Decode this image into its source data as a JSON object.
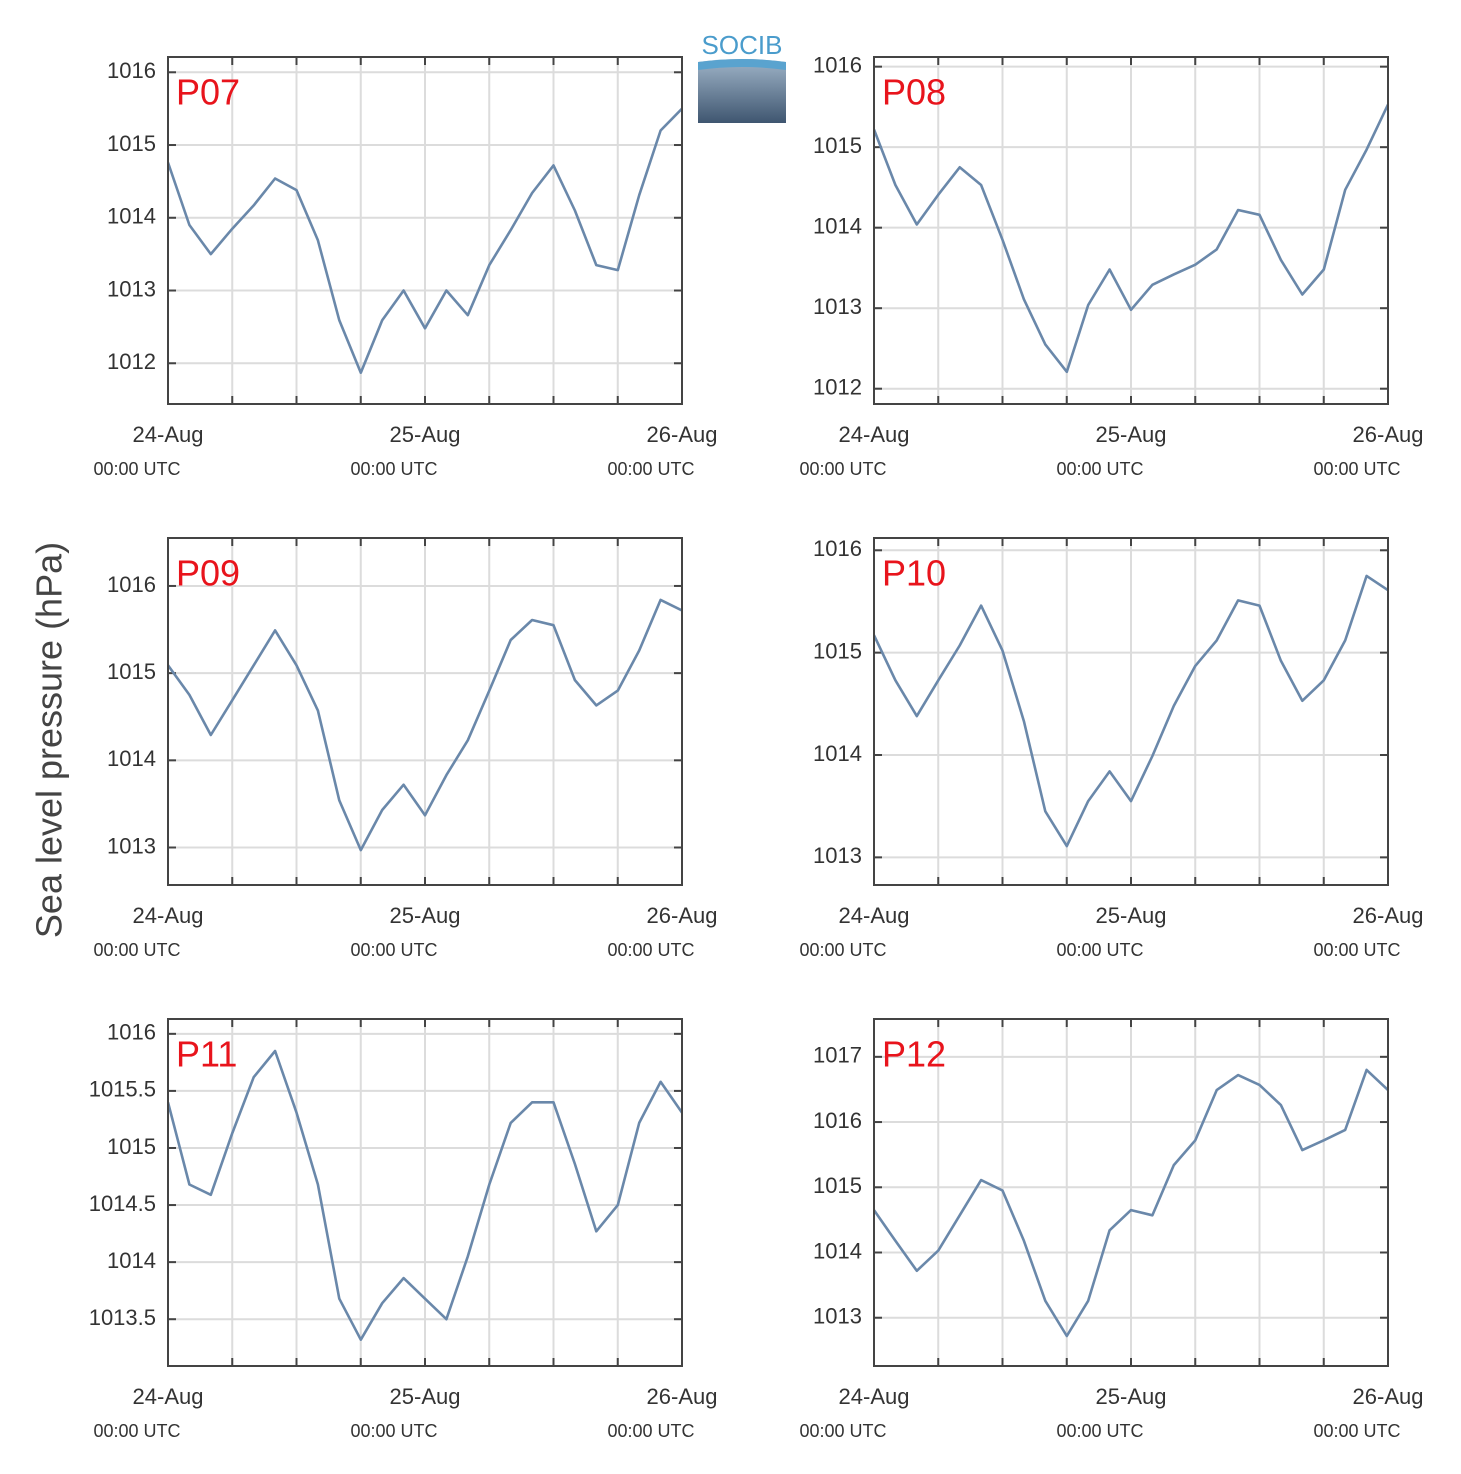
{
  "ylabel": "Sea level pressure (hPa)",
  "logo": "SOCIB",
  "chart_data": [
    {
      "type": "line",
      "title": "P07",
      "color": "#6a88aa",
      "x": [
        "24-Aug 00:00",
        "24-Aug 02:00",
        "24-Aug 04:00",
        "24-Aug 06:00",
        "24-Aug 08:00",
        "24-Aug 10:00",
        "24-Aug 12:00",
        "24-Aug 14:00",
        "24-Aug 16:00",
        "24-Aug 18:00",
        "24-Aug 20:00",
        "24-Aug 22:00",
        "25-Aug 00:00",
        "25-Aug 02:00",
        "25-Aug 04:00",
        "25-Aug 06:00",
        "25-Aug 08:00",
        "25-Aug 10:00",
        "25-Aug 12:00",
        "25-Aug 14:00",
        "25-Aug 16:00",
        "25-Aug 18:00",
        "25-Aug 20:00",
        "25-Aug 22:00",
        "26-Aug 00:00"
      ],
      "values": [
        1014.76,
        1013.9,
        1013.5,
        1013.85,
        1014.17,
        1014.54,
        1014.38,
        1013.69,
        1012.59,
        1011.87,
        1012.59,
        1013.0,
        1012.48,
        1013.0,
        1012.66,
        1013.35,
        1013.83,
        1014.34,
        1014.72,
        1014.1,
        1013.35,
        1013.28,
        1014.31,
        1015.2,
        1015.5
      ],
      "xlim": [
        "24-Aug 00:00",
        "26-Aug 00:00"
      ],
      "xticks": [
        {
          "value": "24-Aug 00:00",
          "label": "24-Aug",
          "sublabel": "00:00 UTC"
        },
        {
          "value": "24-Aug 06:00",
          "label": null
        },
        {
          "value": "24-Aug 12:00",
          "label": null
        },
        {
          "value": "24-Aug 18:00",
          "label": null
        },
        {
          "value": "25-Aug 00:00",
          "label": "25-Aug",
          "sublabel": "00:00 UTC"
        },
        {
          "value": "25-Aug 06:00",
          "label": null
        },
        {
          "value": "25-Aug 12:00",
          "label": null
        },
        {
          "value": "25-Aug 18:00",
          "label": null
        },
        {
          "value": "26-Aug 00:00",
          "label": "26-Aug",
          "sublabel": "00:00 UTC"
        }
      ],
      "ylim": [
        1011.44,
        1016.21
      ],
      "yticks": [
        1012,
        1013,
        1014,
        1015,
        1016
      ],
      "grid": true
    },
    {
      "type": "line",
      "title": "P08",
      "color": "#6a88aa",
      "x": [
        "24-Aug 00:00",
        "24-Aug 02:00",
        "24-Aug 04:00",
        "24-Aug 06:00",
        "24-Aug 08:00",
        "24-Aug 10:00",
        "24-Aug 12:00",
        "24-Aug 14:00",
        "24-Aug 16:00",
        "24-Aug 18:00",
        "24-Aug 20:00",
        "24-Aug 22:00",
        "25-Aug 00:00",
        "25-Aug 02:00",
        "25-Aug 04:00",
        "25-Aug 06:00",
        "25-Aug 08:00",
        "25-Aug 10:00",
        "25-Aug 12:00",
        "25-Aug 14:00",
        "25-Aug 16:00",
        "25-Aug 18:00",
        "25-Aug 20:00",
        "25-Aug 22:00",
        "26-Aug 00:00"
      ],
      "values": [
        1015.22,
        1014.53,
        1014.04,
        1014.41,
        1014.75,
        1014.53,
        1013.85,
        1013.11,
        1012.55,
        1012.21,
        1013.04,
        1013.48,
        1012.98,
        1013.29,
        1013.42,
        1013.54,
        1013.73,
        1014.22,
        1014.16,
        1013.6,
        1013.17,
        1013.48,
        1014.47,
        1014.97,
        1015.53
      ],
      "xlim": [
        "24-Aug 00:00",
        "26-Aug 00:00"
      ],
      "xticks": [
        {
          "value": "24-Aug 00:00",
          "label": "24-Aug",
          "sublabel": "00:00 UTC"
        },
        {
          "value": "24-Aug 06:00",
          "label": null
        },
        {
          "value": "24-Aug 12:00",
          "label": null
        },
        {
          "value": "24-Aug 18:00",
          "label": null
        },
        {
          "value": "25-Aug 00:00",
          "label": "25-Aug",
          "sublabel": "00:00 UTC"
        },
        {
          "value": "25-Aug 06:00",
          "label": null
        },
        {
          "value": "25-Aug 12:00",
          "label": null
        },
        {
          "value": "25-Aug 18:00",
          "label": null
        },
        {
          "value": "26-Aug 00:00",
          "label": "26-Aug",
          "sublabel": "00:00 UTC"
        }
      ],
      "ylim": [
        1011.81,
        1016.12
      ],
      "yticks": [
        1012,
        1013,
        1014,
        1015,
        1016
      ],
      "grid": true
    },
    {
      "type": "line",
      "title": "P09",
      "color": "#6a88aa",
      "x": [
        "24-Aug 00:00",
        "24-Aug 02:00",
        "24-Aug 04:00",
        "24-Aug 06:00",
        "24-Aug 08:00",
        "24-Aug 10:00",
        "24-Aug 12:00",
        "24-Aug 14:00",
        "24-Aug 16:00",
        "24-Aug 18:00",
        "24-Aug 20:00",
        "24-Aug 22:00",
        "25-Aug 00:00",
        "25-Aug 02:00",
        "25-Aug 04:00",
        "25-Aug 06:00",
        "25-Aug 08:00",
        "25-Aug 10:00",
        "25-Aug 12:00",
        "25-Aug 14:00",
        "25-Aug 16:00",
        "25-Aug 18:00",
        "25-Aug 20:00",
        "25-Aug 22:00",
        "26-Aug 00:00"
      ],
      "values": [
        1015.09,
        1014.75,
        1014.29,
        1014.69,
        1015.09,
        1015.49,
        1015.09,
        1014.57,
        1013.54,
        1012.97,
        1013.43,
        1013.72,
        1013.37,
        1013.83,
        1014.23,
        1014.8,
        1015.38,
        1015.61,
        1015.55,
        1014.92,
        1014.63,
        1014.8,
        1015.26,
        1015.84,
        1015.72
      ],
      "xlim": [
        "24-Aug 00:00",
        "26-Aug 00:00"
      ],
      "xticks": [
        {
          "value": "24-Aug 00:00",
          "label": "24-Aug",
          "sublabel": "00:00 UTC"
        },
        {
          "value": "24-Aug 06:00",
          "label": null
        },
        {
          "value": "24-Aug 12:00",
          "label": null
        },
        {
          "value": "24-Aug 18:00",
          "label": null
        },
        {
          "value": "25-Aug 00:00",
          "label": "25-Aug",
          "sublabel": "00:00 UTC"
        },
        {
          "value": "25-Aug 06:00",
          "label": null
        },
        {
          "value": "25-Aug 12:00",
          "label": null
        },
        {
          "value": "25-Aug 18:00",
          "label": null
        },
        {
          "value": "26-Aug 00:00",
          "label": "26-Aug",
          "sublabel": "00:00 UTC"
        }
      ],
      "ylim": [
        1012.57,
        1016.55
      ],
      "yticks": [
        1013,
        1014,
        1015,
        1016
      ],
      "grid": true
    },
    {
      "type": "line",
      "title": "P10",
      "color": "#6a88aa",
      "x": [
        "24-Aug 00:00",
        "24-Aug 02:00",
        "24-Aug 04:00",
        "24-Aug 06:00",
        "24-Aug 08:00",
        "24-Aug 10:00",
        "24-Aug 12:00",
        "24-Aug 14:00",
        "24-Aug 16:00",
        "24-Aug 18:00",
        "24-Aug 20:00",
        "24-Aug 22:00",
        "25-Aug 00:00",
        "25-Aug 02:00",
        "25-Aug 04:00",
        "25-Aug 06:00",
        "25-Aug 08:00",
        "25-Aug 10:00",
        "25-Aug 12:00",
        "25-Aug 14:00",
        "25-Aug 16:00",
        "25-Aug 18:00",
        "25-Aug 20:00",
        "25-Aug 22:00",
        "26-Aug 00:00"
      ],
      "values": [
        1015.17,
        1014.73,
        1014.38,
        1014.73,
        1015.07,
        1015.46,
        1015.02,
        1014.33,
        1013.45,
        1013.11,
        1013.55,
        1013.84,
        1013.55,
        1013.99,
        1014.48,
        1014.87,
        1015.12,
        1015.51,
        1015.46,
        1014.92,
        1014.53,
        1014.73,
        1015.12,
        1015.75,
        1015.61
      ],
      "xlim": [
        "24-Aug 00:00",
        "26-Aug 00:00"
      ],
      "xticks": [
        {
          "value": "24-Aug 00:00",
          "label": "24-Aug",
          "sublabel": "00:00 UTC"
        },
        {
          "value": "24-Aug 06:00",
          "label": null
        },
        {
          "value": "24-Aug 12:00",
          "label": null
        },
        {
          "value": "24-Aug 18:00",
          "label": null
        },
        {
          "value": "25-Aug 00:00",
          "label": "25-Aug",
          "sublabel": "00:00 UTC"
        },
        {
          "value": "25-Aug 06:00",
          "label": null
        },
        {
          "value": "25-Aug 12:00",
          "label": null
        },
        {
          "value": "25-Aug 18:00",
          "label": null
        },
        {
          "value": "26-Aug 00:00",
          "label": "26-Aug",
          "sublabel": "00:00 UTC"
        }
      ],
      "ylim": [
        1012.73,
        1016.12
      ],
      "yticks": [
        1013,
        1014,
        1015,
        1016
      ],
      "grid": true
    },
    {
      "type": "line",
      "title": "P11",
      "color": "#6a88aa",
      "x": [
        "24-Aug 00:00",
        "24-Aug 02:00",
        "24-Aug 04:00",
        "24-Aug 06:00",
        "24-Aug 08:00",
        "24-Aug 10:00",
        "24-Aug 12:00",
        "24-Aug 14:00",
        "24-Aug 16:00",
        "24-Aug 18:00",
        "24-Aug 20:00",
        "24-Aug 22:00",
        "25-Aug 00:00",
        "25-Aug 02:00",
        "25-Aug 04:00",
        "25-Aug 06:00",
        "25-Aug 08:00",
        "25-Aug 10:00",
        "25-Aug 12:00",
        "25-Aug 14:00",
        "25-Aug 16:00",
        "25-Aug 18:00",
        "25-Aug 20:00",
        "25-Aug 22:00",
        "26-Aug 00:00"
      ],
      "values": [
        1015.4,
        1014.68,
        1014.59,
        1015.13,
        1015.62,
        1015.85,
        1015.31,
        1014.68,
        1013.68,
        1013.32,
        1013.64,
        1013.86,
        1013.68,
        1013.5,
        1014.05,
        1014.68,
        1015.22,
        1015.4,
        1015.4,
        1014.86,
        1014.27,
        1014.5,
        1015.22,
        1015.58,
        1015.31
      ],
      "xlim": [
        "24-Aug 00:00",
        "26-Aug 00:00"
      ],
      "xticks": [
        {
          "value": "24-Aug 00:00",
          "label": "24-Aug",
          "sublabel": "00:00 UTC"
        },
        {
          "value": "24-Aug 06:00",
          "label": null
        },
        {
          "value": "24-Aug 12:00",
          "label": null
        },
        {
          "value": "24-Aug 18:00",
          "label": null
        },
        {
          "value": "25-Aug 00:00",
          "label": "25-Aug",
          "sublabel": "00:00 UTC"
        },
        {
          "value": "25-Aug 06:00",
          "label": null
        },
        {
          "value": "25-Aug 12:00",
          "label": null
        },
        {
          "value": "25-Aug 18:00",
          "label": null
        },
        {
          "value": "26-Aug 00:00",
          "label": "26-Aug",
          "sublabel": "00:00 UTC"
        }
      ],
      "ylim": [
        1013.09,
        1016.13
      ],
      "yticks": [
        1013.5,
        1014,
        1014.5,
        1015,
        1015.5,
        1016
      ],
      "grid": true
    },
    {
      "type": "line",
      "title": "P12",
      "color": "#6a88aa",
      "x": [
        "24-Aug 00:00",
        "24-Aug 02:00",
        "24-Aug 04:00",
        "24-Aug 06:00",
        "24-Aug 08:00",
        "24-Aug 10:00",
        "24-Aug 12:00",
        "24-Aug 14:00",
        "24-Aug 16:00",
        "24-Aug 18:00",
        "24-Aug 20:00",
        "24-Aug 22:00",
        "25-Aug 00:00",
        "25-Aug 02:00",
        "25-Aug 04:00",
        "25-Aug 06:00",
        "25-Aug 08:00",
        "25-Aug 10:00",
        "25-Aug 12:00",
        "25-Aug 14:00",
        "25-Aug 16:00",
        "25-Aug 18:00",
        "25-Aug 20:00",
        "25-Aug 22:00",
        "26-Aug 00:00"
      ],
      "values": [
        1014.65,
        1014.18,
        1013.72,
        1014.03,
        1014.57,
        1015.11,
        1014.95,
        1014.18,
        1013.26,
        1012.72,
        1013.26,
        1014.34,
        1014.65,
        1014.57,
        1015.34,
        1015.72,
        1016.49,
        1016.72,
        1016.57,
        1016.26,
        1015.57,
        1015.72,
        1015.88,
        1016.8,
        1016.49
      ],
      "xlim": [
        "24-Aug 00:00",
        "26-Aug 00:00"
      ],
      "xticks": [
        {
          "value": "24-Aug 00:00",
          "label": "24-Aug",
          "sublabel": "00:00 UTC"
        },
        {
          "value": "24-Aug 06:00",
          "label": null
        },
        {
          "value": "24-Aug 12:00",
          "label": null
        },
        {
          "value": "24-Aug 18:00",
          "label": null
        },
        {
          "value": "25-Aug 00:00",
          "label": "25-Aug",
          "sublabel": "00:00 UTC"
        },
        {
          "value": "25-Aug 06:00",
          "label": null
        },
        {
          "value": "25-Aug 12:00",
          "label": null
        },
        {
          "value": "25-Aug 18:00",
          "label": null
        },
        {
          "value": "26-Aug 00:00",
          "label": "26-Aug",
          "sublabel": "00:00 UTC"
        }
      ],
      "ylim": [
        1012.26,
        1017.58
      ],
      "yticks": [
        1013,
        1014,
        1015,
        1016,
        1017
      ],
      "grid": true
    }
  ]
}
